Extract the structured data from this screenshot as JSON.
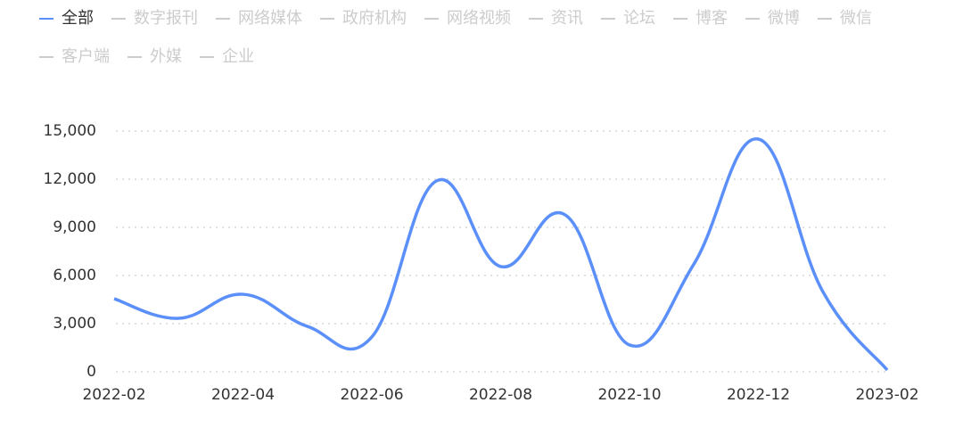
{
  "chart_data": {
    "type": "line",
    "series": [
      {
        "name": "全部",
        "color": "#5b8ff9",
        "values": [
          4550,
          3330,
          4830,
          2830,
          2170,
          11890,
          6560,
          9780,
          1670,
          6720,
          14500,
          5000,
          110
        ]
      },
      {
        "name": "数字报刊",
        "visible": false
      },
      {
        "name": "网络媒体",
        "visible": false
      },
      {
        "name": "政府机构",
        "visible": false
      },
      {
        "name": "网络视频",
        "visible": false
      },
      {
        "name": "资讯",
        "visible": false
      },
      {
        "name": "论坛",
        "visible": false
      },
      {
        "name": "博客",
        "visible": false
      },
      {
        "name": "微博",
        "visible": false
      },
      {
        "name": "微信",
        "visible": false
      },
      {
        "name": "客户端",
        "visible": false
      },
      {
        "name": "外媒",
        "visible": false
      },
      {
        "name": "企业",
        "visible": false
      }
    ],
    "inactive_color": "#cccccc",
    "categories": [
      "2022-02",
      null,
      "2022-04",
      null,
      "2022-06",
      null,
      "2022-08",
      null,
      "2022-10",
      null,
      "2022-12",
      null,
      "2023-02"
    ],
    "ylim": [
      0,
      15000
    ],
    "yticks": [
      0,
      {
        "value": 3000,
        "label": "3,000"
      },
      {
        "value": 6000,
        "label": "6,000"
      },
      {
        "value": 9000,
        "label": "9,000"
      },
      {
        "value": 12000,
        "label": "12,000"
      },
      {
        "value": 15000,
        "label": "15,000"
      }
    ],
    "grid": true,
    "smooth": true
  }
}
